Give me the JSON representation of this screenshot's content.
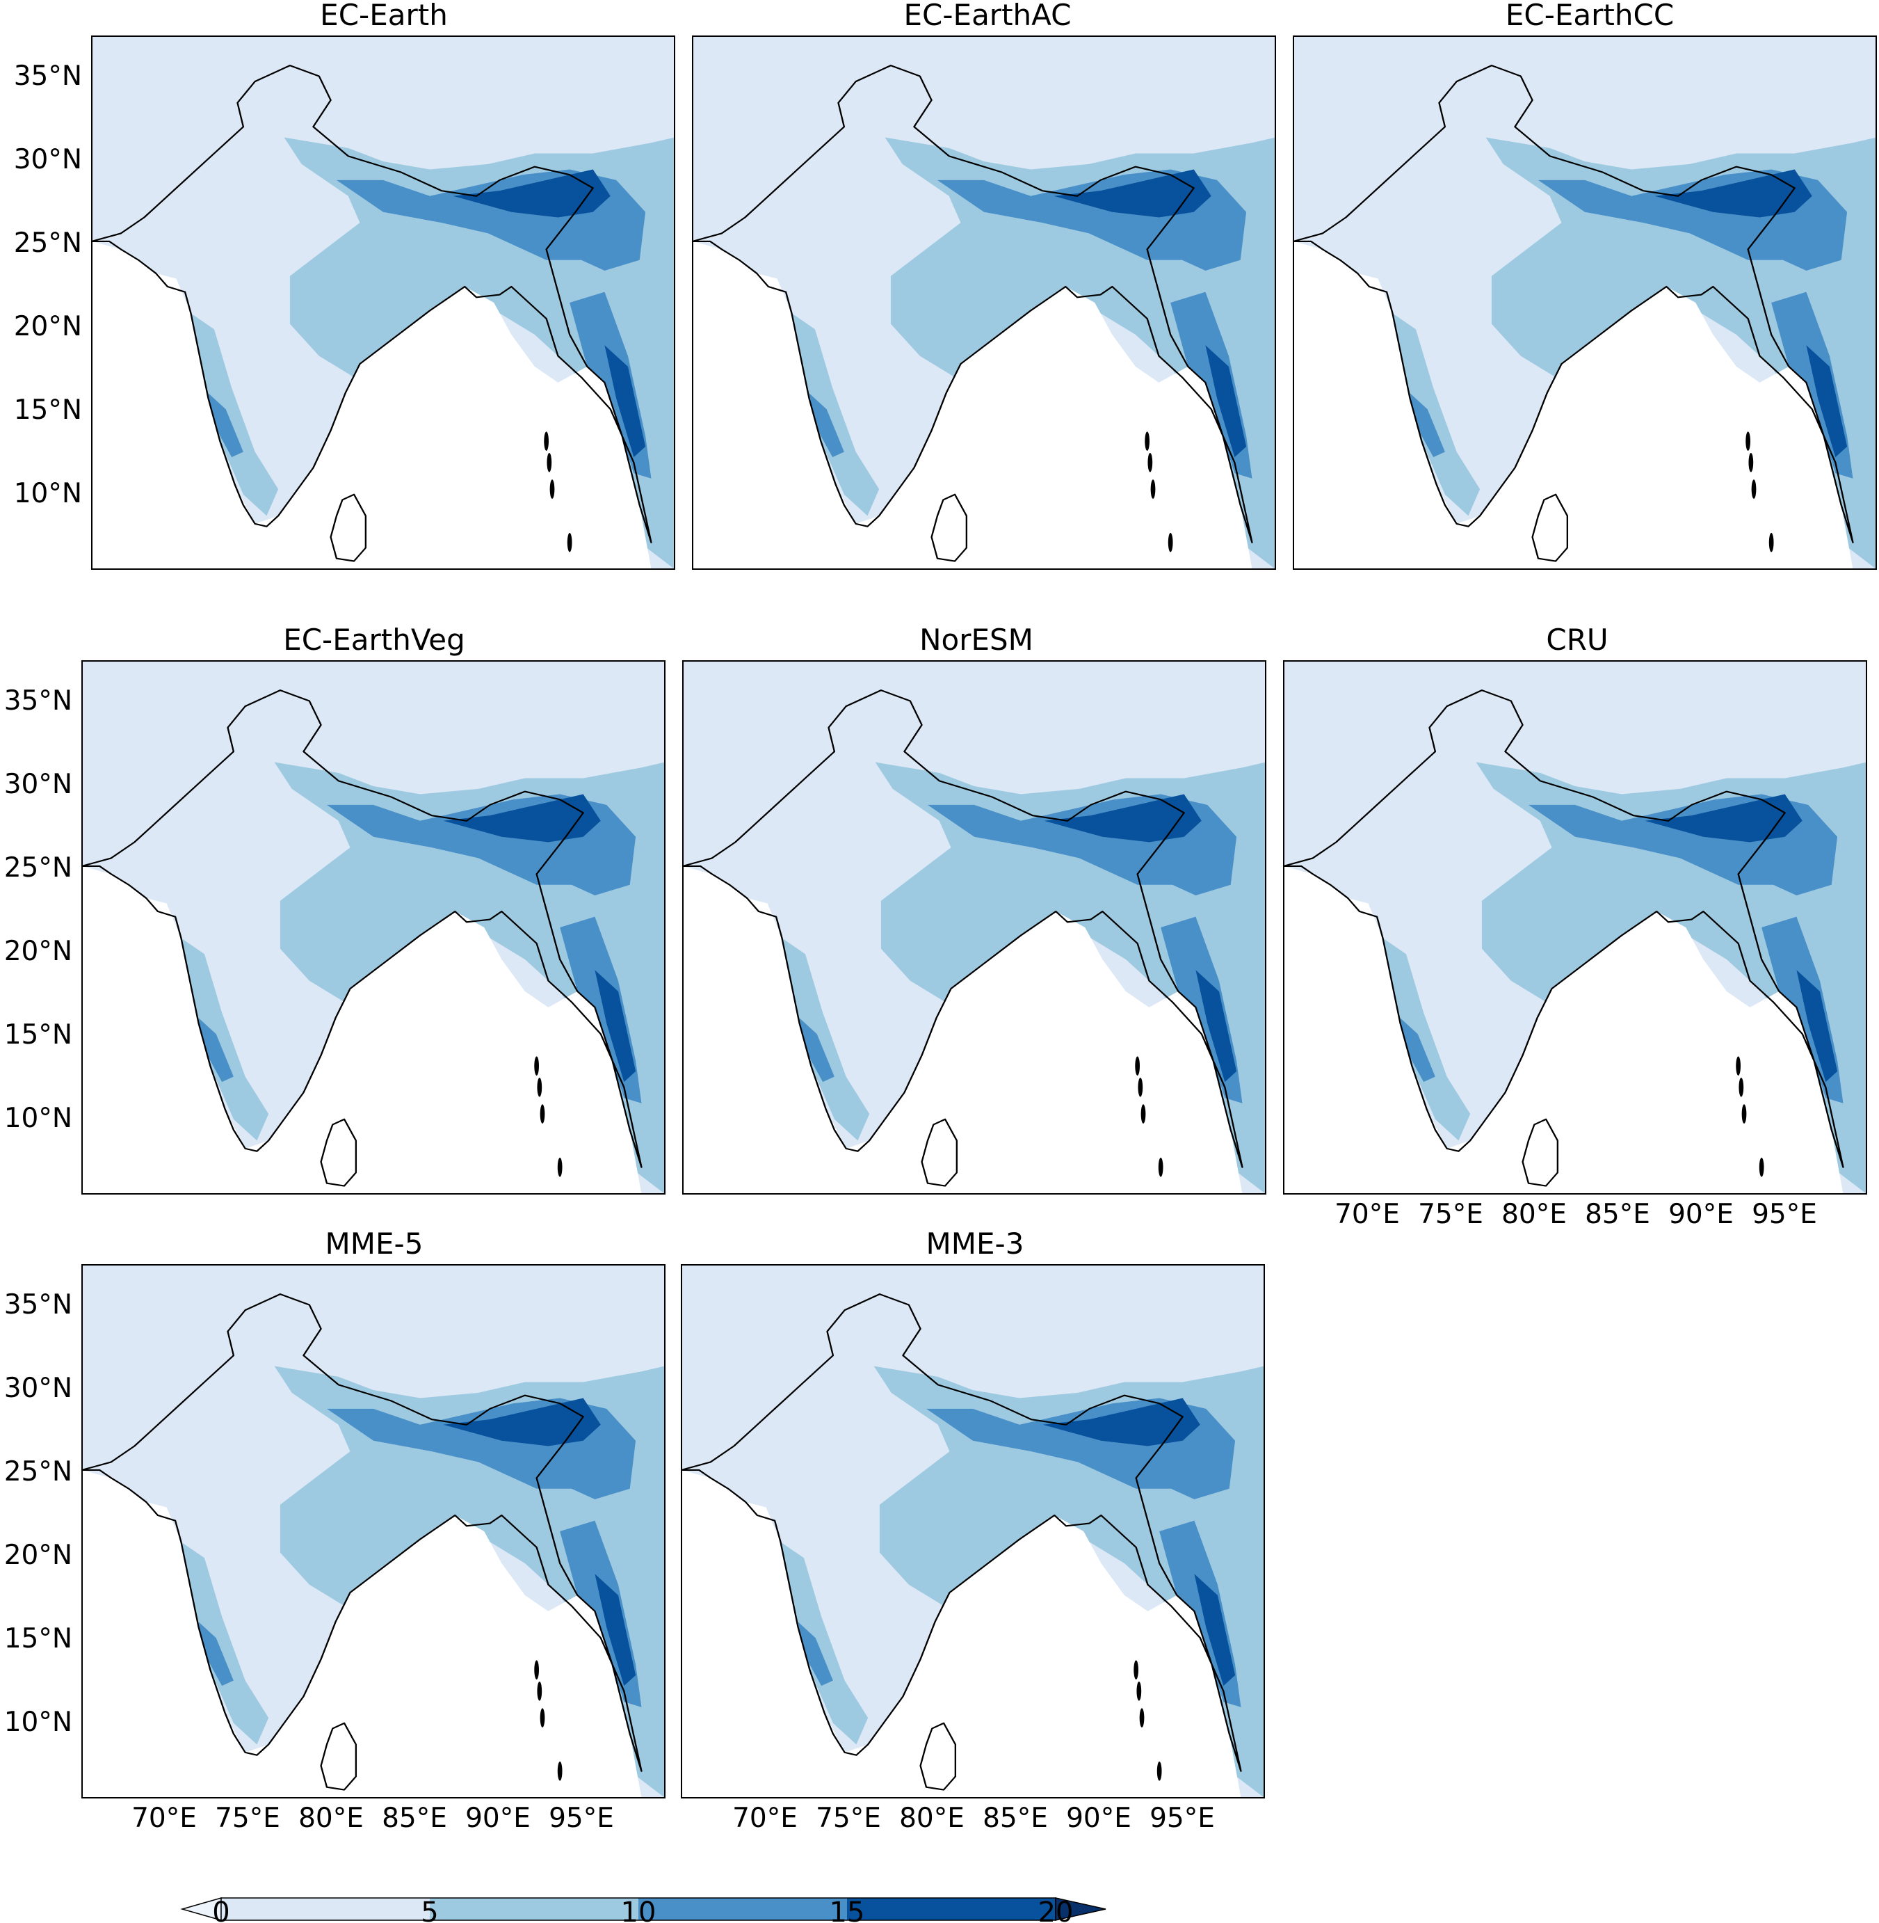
{
  "figure": {
    "panels": [
      {
        "title": "EC-Earth"
      },
      {
        "title": "EC-EarthAC"
      },
      {
        "title": "EC-EarthCC"
      },
      {
        "title": "EC-EarthVeg"
      },
      {
        "title": "NorESM"
      },
      {
        "title": "CRU"
      },
      {
        "title": "MME-5"
      },
      {
        "title": "MME-3"
      }
    ],
    "lat_ticks": [
      "35°N",
      "30°N",
      "25°N",
      "20°N",
      "15°N",
      "10°N"
    ],
    "lon_ticks": [
      "70°E",
      "75°E",
      "80°E",
      "85°E",
      "90°E",
      "95°E"
    ],
    "colorbar": {
      "ticks": [
        "0",
        "5",
        "10",
        "15",
        "20"
      ],
      "levels": [
        0,
        5,
        10,
        15,
        20
      ],
      "extend": "both"
    }
  },
  "chart_data": {
    "type": "contour map",
    "panels": [
      "EC-Earth",
      "EC-EarthAC",
      "EC-EarthCC",
      "EC-EarthVeg",
      "NorESM",
      "CRU",
      "MME-5",
      "MME-3"
    ],
    "lat_range": [
      5,
      37.5
    ],
    "lon_range": [
      65,
      100
    ],
    "lat_ticks": [
      35,
      30,
      25,
      20,
      15,
      10
    ],
    "lon_ticks": [
      70,
      75,
      80,
      85,
      90,
      95
    ],
    "colorbar_levels": [
      0,
      5,
      10,
      15,
      20
    ],
    "colors": [
      "#dce8f5",
      "#9ecae1",
      "#4a90c8",
      "#08519c",
      "#08306b"
    ]
  }
}
